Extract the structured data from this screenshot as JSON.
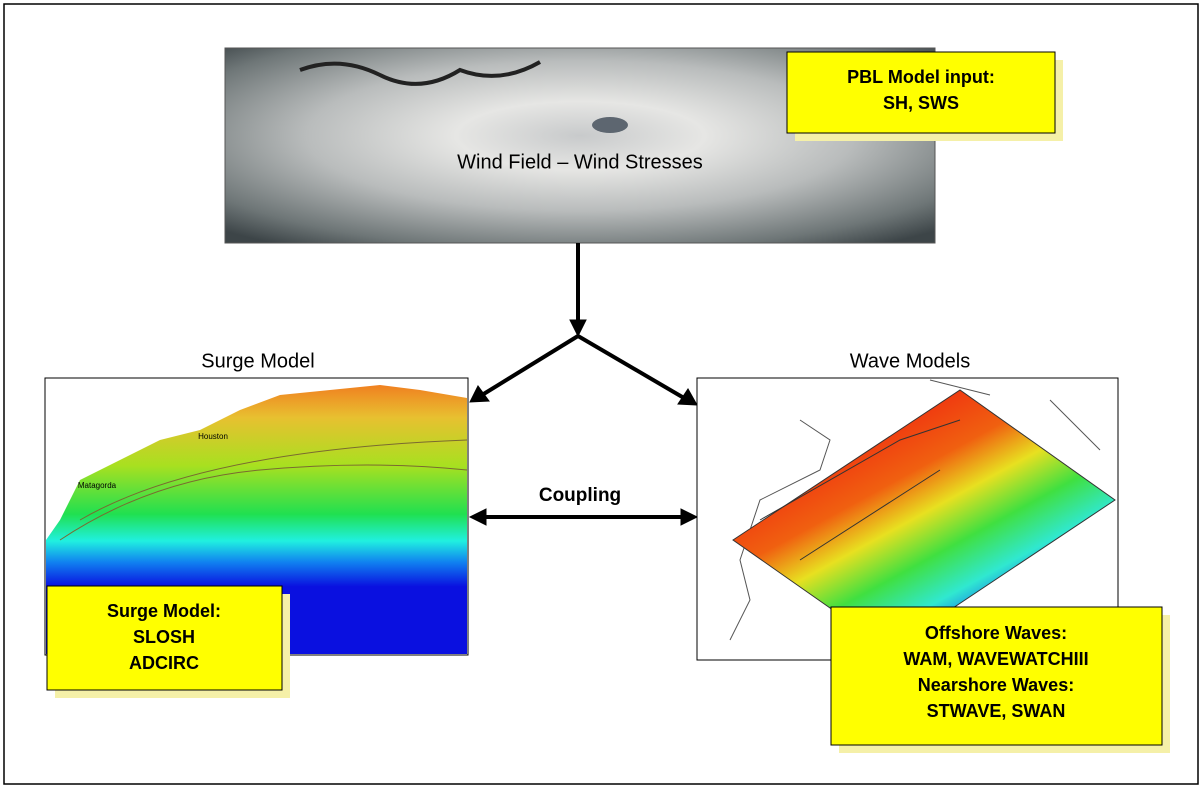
{
  "wind": {
    "label": "Wind Field – Wind Stresses"
  },
  "pbl": {
    "lines": [
      "PBL Model input:",
      "SH, SWS"
    ]
  },
  "surge": {
    "heading": "Surge Model",
    "places": [
      "Houston",
      "Matagorda"
    ],
    "lines": [
      "Surge Model:",
      "SLOSH",
      "ADCIRC"
    ]
  },
  "wave": {
    "heading": "Wave Models",
    "lines": [
      "Offshore Waves:",
      "WAM, WAVEWATCHIII",
      "Nearshore Waves:",
      "STWAVE, SWAN"
    ]
  },
  "coupling": {
    "label": "Coupling"
  }
}
